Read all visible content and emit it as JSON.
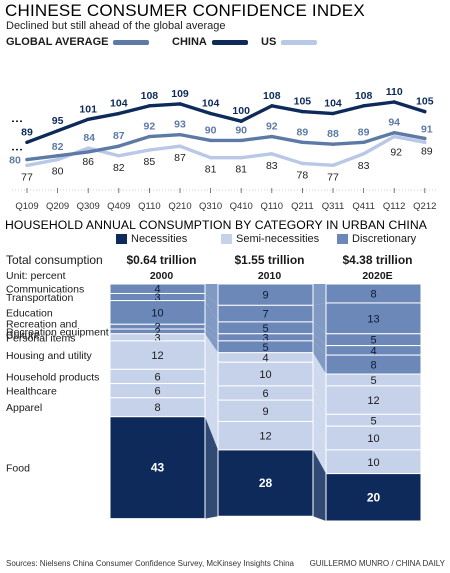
{
  "colors": {
    "global": "#5d7aa6",
    "china": "#0d2a5a",
    "us": "#b9c8e6",
    "necessities": "#c6d2ea",
    "semi": "#c6d2ea",
    "discretionary": "#6b88b8",
    "food": "#0d2a5a",
    "text": "#1a1a1a"
  },
  "header": {
    "title": "CHINESE CONSUMER CONFIDENCE INDEX",
    "subtitle": "Declined but still ahead of the global average"
  },
  "legend_top": {
    "global": "GLOBAL AVERAGE",
    "china": "CHINA",
    "us": "US"
  },
  "section2": {
    "title": "HOUSEHOLD ANNUAL CONSUMPTION BY CATEGORY IN URBAN CHINA",
    "legend": {
      "necessities": "Necessities",
      "semi": "Semi-necessities",
      "discretionary": "Discretionary"
    },
    "total_label": "Total consumption",
    "unit_label": "Unit: percent"
  },
  "footer": {
    "sources": "Sources:  Nielsens China Consumer Confidence Survey, McKinsey Insights China",
    "credit": "GUILLERMO MUNRO / CHINA DAILY"
  },
  "chart_data": [
    {
      "type": "line",
      "title": "CHINESE CONSUMER CONFIDENCE INDEX",
      "subtitle": "Declined but still ahead of the global average",
      "categories": [
        "Q109",
        "Q209",
        "Q309",
        "Q409",
        "Q110",
        "Q210",
        "Q310",
        "Q410",
        "Q110",
        "Q211",
        "Q311",
        "Q411",
        "Q112",
        "Q212"
      ],
      "series": [
        {
          "name": "CHINA",
          "values": [
            89,
            95,
            101,
            104,
            108,
            109,
            104,
            100,
            108,
            105,
            104,
            108,
            110,
            105
          ]
        },
        {
          "name": "GLOBAL AVERAGE",
          "values": [
            80,
            82,
            84,
            87,
            92,
            93,
            90,
            90,
            92,
            89,
            88,
            89,
            94,
            91
          ]
        },
        {
          "name": "US",
          "values": [
            77,
            80,
            86,
            82,
            85,
            87,
            81,
            81,
            83,
            78,
            77,
            83,
            92,
            89
          ]
        }
      ],
      "legend": "top"
    },
    {
      "type": "bar",
      "title": "HOUSEHOLD ANNUAL CONSUMPTION BY CATEGORY IN URBAN CHINA",
      "unit": "Unit: percent",
      "columns": [
        "2000",
        "2010",
        "2020E"
      ],
      "totals": [
        "$0.64 trillion",
        "$1.55 trillion",
        "$4.38 trillion"
      ],
      "series": [
        {
          "name": "Communications",
          "group": "Discretionary",
          "values": [
            4,
            9,
            8
          ]
        },
        {
          "name": "Transportation",
          "group": "Discretionary",
          "values": [
            3,
            7,
            13
          ]
        },
        {
          "name": "Education",
          "group": "Discretionary",
          "values": [
            10,
            5,
            5
          ]
        },
        {
          "name": "Recreation and Culture",
          "group": "Discretionary",
          "values": [
            2,
            3,
            4
          ]
        },
        {
          "name": "Recreation equipment",
          "group": "Discretionary",
          "values": [
            2,
            5,
            8
          ]
        },
        {
          "name": "Personal items",
          "group": "Semi-necessities",
          "values": [
            3,
            4,
            5
          ]
        },
        {
          "name": "Housing and utility",
          "group": "Semi-necessities",
          "values": [
            12,
            10,
            12
          ]
        },
        {
          "name": "Household products",
          "group": "Semi-necessities",
          "values": [
            6,
            6,
            5
          ]
        },
        {
          "name": "Healthcare",
          "group": "Semi-necessities",
          "values": [
            6,
            9,
            10
          ]
        },
        {
          "name": "Apparel",
          "group": "Semi-necessities",
          "values": [
            8,
            12,
            10
          ]
        },
        {
          "name": "Food",
          "group": "Necessities",
          "values": [
            43,
            28,
            20
          ]
        }
      ],
      "legend": "top"
    }
  ]
}
